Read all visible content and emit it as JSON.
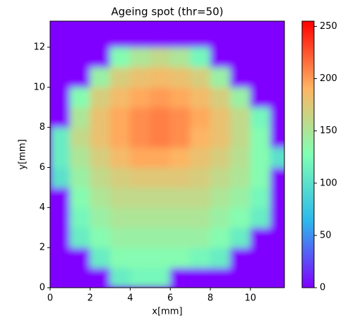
{
  "chart_data": {
    "type": "heatmap",
    "title": "Ageing spot (thr=50)",
    "x_label": "x[mm]",
    "y_label": "y[mm]",
    "xlim": [
      0,
      11.7
    ],
    "ylim": [
      0,
      13.3
    ],
    "xticks": [
      0,
      2,
      4,
      6,
      8,
      10
    ],
    "yticks": [
      0,
      2,
      4,
      6,
      8,
      10,
      12
    ],
    "x": [
      0.5,
      1.5,
      2.5,
      3.5,
      4.5,
      5.5,
      6.5,
      7.5,
      8.5,
      9.5,
      10.5,
      11.5
    ],
    "y": [
      0.5,
      1.5,
      2.5,
      3.5,
      4.5,
      5.5,
      6.5,
      7.5,
      8.5,
      9.5,
      10.5,
      11.5,
      12.5,
      13.5
    ],
    "z": [
      [
        0,
        0,
        0,
        110,
        120,
        120,
        0,
        0,
        0,
        0,
        0,
        0
      ],
      [
        0,
        0,
        110,
        130,
        130,
        130,
        130,
        120,
        110,
        0,
        0,
        0
      ],
      [
        0,
        110,
        130,
        140,
        140,
        140,
        140,
        140,
        130,
        110,
        0,
        0
      ],
      [
        0,
        120,
        140,
        150,
        150,
        150,
        150,
        150,
        140,
        130,
        110,
        0
      ],
      [
        0,
        130,
        150,
        160,
        160,
        160,
        160,
        160,
        150,
        140,
        120,
        0
      ],
      [
        100,
        140,
        160,
        170,
        175,
        175,
        175,
        170,
        160,
        150,
        130,
        0
      ],
      [
        110,
        150,
        170,
        185,
        195,
        195,
        190,
        180,
        170,
        155,
        130,
        100
      ],
      [
        110,
        160,
        180,
        195,
        205,
        210,
        205,
        190,
        180,
        160,
        130,
        0
      ],
      [
        0,
        150,
        180,
        195,
        205,
        210,
        205,
        195,
        180,
        160,
        120,
        0
      ],
      [
        0,
        130,
        170,
        185,
        195,
        200,
        195,
        185,
        170,
        140,
        0,
        0
      ],
      [
        0,
        0,
        140,
        170,
        180,
        185,
        180,
        170,
        140,
        0,
        0,
        0
      ],
      [
        0,
        0,
        0,
        130,
        150,
        160,
        150,
        120,
        0,
        0,
        0,
        0
      ],
      [
        0,
        0,
        0,
        0,
        0,
        0,
        0,
        0,
        0,
        0,
        0,
        0
      ],
      [
        0,
        0,
        0,
        0,
        0,
        0,
        0,
        0,
        0,
        0,
        0,
        0
      ]
    ],
    "colormap": [
      "#8000ff",
      "#2cb8ec",
      "#80ffb4",
      "#ffb462",
      "#ff0000"
    ],
    "clim": [
      0,
      255
    ],
    "cticks": [
      0,
      50,
      100,
      150,
      200,
      250
    ]
  }
}
